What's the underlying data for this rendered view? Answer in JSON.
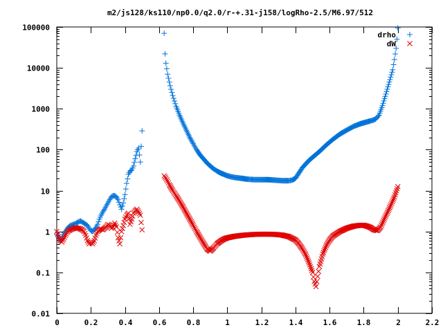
{
  "chart_data": {
    "type": "scatter",
    "title": "m2/js128/ks110/np0.0/q2.0/r-+.31-j158/logRho-2.5/M6.97/512",
    "xlabel": "",
    "ylabel": "",
    "xlim": [
      0,
      2.2
    ],
    "ylim": [
      0.01,
      100000
    ],
    "y_scale": "log",
    "grid": false,
    "legend": "top-right",
    "x_ticks": [
      "0",
      "0.2",
      "0.4",
      "0.6",
      "0.8",
      "1",
      "1.2",
      "1.4",
      "1.6",
      "1.8",
      "2",
      "2.2"
    ],
    "y_ticks": [
      "0.01",
      "0.1",
      "1",
      "10",
      "100",
      "1000",
      "10000",
      "100000"
    ],
    "series": [
      {
        "name": "drho",
        "marker": "plus",
        "color": "#0072d9",
        "points": [
          [
            0.0,
            0.85
          ],
          [
            0.01,
            0.72
          ],
          [
            0.02,
            0.6
          ],
          [
            0.03,
            0.68
          ],
          [
            0.04,
            0.85
          ],
          [
            0.05,
            1.0
          ],
          [
            0.06,
            1.15
          ],
          [
            0.07,
            1.3
          ],
          [
            0.08,
            1.4
          ],
          [
            0.09,
            1.45
          ],
          [
            0.1,
            1.5
          ],
          [
            0.11,
            1.55
          ],
          [
            0.12,
            1.65
          ],
          [
            0.13,
            1.75
          ],
          [
            0.14,
            1.8
          ],
          [
            0.15,
            1.7
          ],
          [
            0.16,
            1.6
          ],
          [
            0.17,
            1.5
          ],
          [
            0.18,
            1.4
          ],
          [
            0.19,
            1.2
          ],
          [
            0.2,
            1.05
          ],
          [
            0.21,
            1.0
          ],
          [
            0.22,
            1.1
          ],
          [
            0.23,
            1.25
          ],
          [
            0.24,
            1.5
          ],
          [
            0.25,
            2.0
          ],
          [
            0.26,
            2.5
          ],
          [
            0.27,
            3.0
          ],
          [
            0.28,
            3.5
          ],
          [
            0.29,
            4.2
          ],
          [
            0.3,
            5.0
          ],
          [
            0.31,
            6.0
          ],
          [
            0.32,
            7.0
          ],
          [
            0.33,
            7.5
          ],
          [
            0.34,
            7.5
          ],
          [
            0.35,
            7.0
          ],
          [
            0.36,
            6.0
          ],
          [
            0.37,
            4.5
          ],
          [
            0.38,
            3.5
          ],
          [
            0.39,
            5.0
          ],
          [
            0.4,
            8.0
          ],
          [
            0.41,
            15.0
          ],
          [
            0.42,
            25.0
          ],
          [
            0.43,
            30.0
          ],
          [
            0.44,
            32.0
          ],
          [
            0.45,
            40.0
          ],
          [
            0.46,
            60.0
          ],
          [
            0.47,
            90.0
          ],
          [
            0.48,
            110.0
          ],
          [
            0.49,
            50.0
          ],
          [
            0.5,
            290.0
          ],
          [
            0.63,
            70000.0
          ],
          [
            0.635,
            22000.0
          ],
          [
            0.64,
            13000.0
          ],
          [
            0.65,
            7000.0
          ],
          [
            0.66,
            4500.0
          ],
          [
            0.67,
            3000.0
          ],
          [
            0.68,
            2100.0
          ],
          [
            0.69,
            1550.0
          ],
          [
            0.7,
            1150.0
          ],
          [
            0.72,
            700.0
          ],
          [
            0.74,
            450.0
          ],
          [
            0.76,
            300.0
          ],
          [
            0.78,
            200.0
          ],
          [
            0.8,
            140.0
          ],
          [
            0.82,
            100.0
          ],
          [
            0.84,
            75.0
          ],
          [
            0.86,
            60.0
          ],
          [
            0.88,
            48.0
          ],
          [
            0.9,
            40.0
          ],
          [
            0.92,
            34.0
          ],
          [
            0.94,
            30.0
          ],
          [
            0.96,
            27.0
          ],
          [
            0.98,
            25.0
          ],
          [
            1.0,
            23.0
          ],
          [
            1.04,
            21.0
          ],
          [
            1.08,
            20.0
          ],
          [
            1.12,
            19.0
          ],
          [
            1.16,
            18.5
          ],
          [
            1.2,
            18.5
          ],
          [
            1.24,
            18.5
          ],
          [
            1.28,
            18.0
          ],
          [
            1.32,
            17.5
          ],
          [
            1.36,
            17.5
          ],
          [
            1.38,
            18.0
          ],
          [
            1.4,
            20.0
          ],
          [
            1.42,
            27.0
          ],
          [
            1.44,
            36.0
          ],
          [
            1.46,
            45.0
          ],
          [
            1.48,
            55.0
          ],
          [
            1.5,
            65.0
          ],
          [
            1.54,
            90.0
          ],
          [
            1.58,
            130.0
          ],
          [
            1.62,
            180.0
          ],
          [
            1.66,
            240.0
          ],
          [
            1.7,
            300.0
          ],
          [
            1.74,
            370.0
          ],
          [
            1.78,
            430.0
          ],
          [
            1.82,
            480.0
          ],
          [
            1.85,
            520.0
          ],
          [
            1.87,
            560.0
          ],
          [
            1.89,
            700.0
          ],
          [
            1.91,
            1200.0
          ],
          [
            1.93,
            2300.0
          ],
          [
            1.95,
            4500.0
          ],
          [
            1.97,
            9000.0
          ],
          [
            1.98,
            16000.0
          ],
          [
            1.99,
            30000.0
          ],
          [
            1.995,
            50000.0
          ],
          [
            2.0,
            95000.0
          ]
        ]
      },
      {
        "name": "dW",
        "marker": "cross",
        "color": "#e00000",
        "points": [
          [
            0.0,
            1.0
          ],
          [
            0.01,
            0.75
          ],
          [
            0.02,
            0.6
          ],
          [
            0.03,
            0.55
          ],
          [
            0.04,
            0.65
          ],
          [
            0.05,
            0.8
          ],
          [
            0.06,
            0.95
          ],
          [
            0.07,
            1.05
          ],
          [
            0.08,
            1.1
          ],
          [
            0.09,
            1.15
          ],
          [
            0.1,
            1.2
          ],
          [
            0.11,
            1.25
          ],
          [
            0.12,
            1.2
          ],
          [
            0.13,
            1.2
          ],
          [
            0.14,
            1.15
          ],
          [
            0.15,
            1.1
          ],
          [
            0.16,
            1.0
          ],
          [
            0.17,
            0.8
          ],
          [
            0.18,
            0.6
          ],
          [
            0.19,
            0.5
          ],
          [
            0.2,
            0.55
          ],
          [
            0.21,
            0.5
          ],
          [
            0.22,
            0.6
          ],
          [
            0.23,
            0.8
          ],
          [
            0.24,
            1.0
          ],
          [
            0.25,
            1.1
          ],
          [
            0.26,
            1.15
          ],
          [
            0.27,
            1.1
          ],
          [
            0.28,
            1.2
          ],
          [
            0.29,
            1.3
          ],
          [
            0.3,
            1.5
          ],
          [
            0.31,
            1.4
          ],
          [
            0.32,
            1.2
          ],
          [
            0.33,
            1.3
          ],
          [
            0.34,
            1.6
          ],
          [
            0.35,
            1.3
          ],
          [
            0.36,
            0.7
          ],
          [
            0.37,
            0.5
          ],
          [
            0.38,
            1.0
          ],
          [
            0.39,
            1.4
          ],
          [
            0.4,
            2.0
          ],
          [
            0.41,
            2.5
          ],
          [
            0.42,
            2.8
          ],
          [
            0.43,
            1.5
          ],
          [
            0.44,
            2.0
          ],
          [
            0.45,
            2.8
          ],
          [
            0.46,
            3.2
          ],
          [
            0.47,
            3.5
          ],
          [
            0.48,
            3.0
          ],
          [
            0.49,
            2.5
          ],
          [
            0.5,
            1.1
          ],
          [
            0.63,
            23.0
          ],
          [
            0.64,
            20.0
          ],
          [
            0.65,
            17.0
          ],
          [
            0.66,
            14.0
          ],
          [
            0.68,
            10.0
          ],
          [
            0.7,
            7.5
          ],
          [
            0.72,
            5.5
          ],
          [
            0.74,
            4.0
          ],
          [
            0.76,
            2.8
          ],
          [
            0.78,
            2.0
          ],
          [
            0.8,
            1.4
          ],
          [
            0.82,
            1.0
          ],
          [
            0.84,
            0.72
          ],
          [
            0.86,
            0.52
          ],
          [
            0.88,
            0.38
          ],
          [
            0.9,
            0.33
          ],
          [
            0.92,
            0.4
          ],
          [
            0.94,
            0.5
          ],
          [
            0.96,
            0.58
          ],
          [
            0.98,
            0.65
          ],
          [
            1.0,
            0.7
          ],
          [
            1.04,
            0.76
          ],
          [
            1.08,
            0.8
          ],
          [
            1.12,
            0.83
          ],
          [
            1.16,
            0.85
          ],
          [
            1.2,
            0.86
          ],
          [
            1.24,
            0.86
          ],
          [
            1.28,
            0.85
          ],
          [
            1.32,
            0.82
          ],
          [
            1.36,
            0.75
          ],
          [
            1.4,
            0.62
          ],
          [
            1.42,
            0.5
          ],
          [
            1.44,
            0.38
          ],
          [
            1.46,
            0.27
          ],
          [
            1.48,
            0.17
          ],
          [
            1.5,
            0.1
          ],
          [
            1.51,
            0.06
          ],
          [
            1.52,
            0.045
          ],
          [
            1.53,
            0.08
          ],
          [
            1.54,
            0.14
          ],
          [
            1.56,
            0.28
          ],
          [
            1.58,
            0.45
          ],
          [
            1.6,
            0.62
          ],
          [
            1.62,
            0.78
          ],
          [
            1.66,
            1.0
          ],
          [
            1.7,
            1.2
          ],
          [
            1.74,
            1.35
          ],
          [
            1.78,
            1.42
          ],
          [
            1.8,
            1.42
          ],
          [
            1.82,
            1.35
          ],
          [
            1.84,
            1.25
          ],
          [
            1.86,
            1.1
          ],
          [
            1.88,
            1.05
          ],
          [
            1.9,
            1.3
          ],
          [
            1.92,
            2.0
          ],
          [
            1.94,
            3.0
          ],
          [
            1.96,
            4.5
          ],
          [
            1.98,
            7.0
          ],
          [
            2.0,
            12.5
          ]
        ]
      }
    ]
  }
}
